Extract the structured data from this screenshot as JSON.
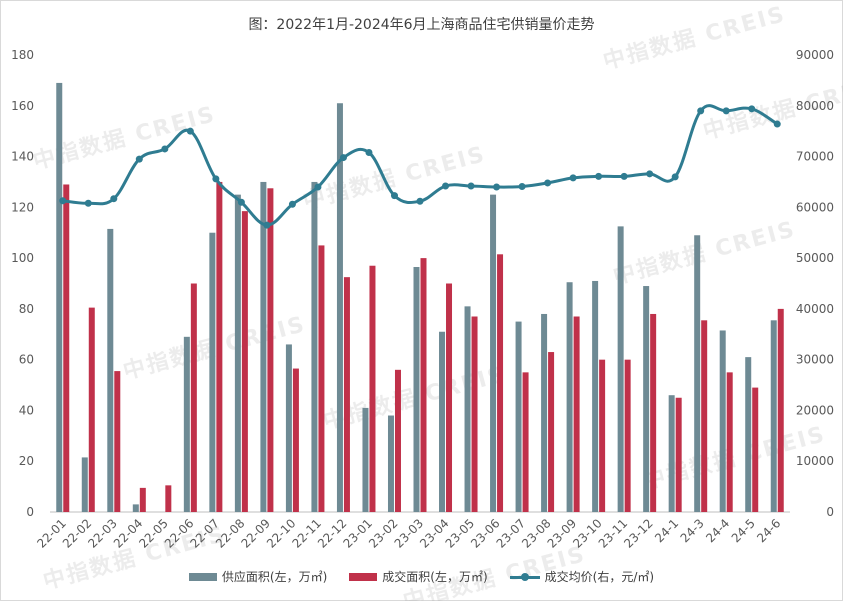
{
  "watermark": "中指数据 CREIS",
  "chart_data": {
    "type": "bar",
    "title": "图：2022年1月-2024年6月上海商品住宅供销量价走势",
    "categories": [
      "22-01",
      "22-02",
      "22-03",
      "22-04",
      "22-05",
      "22-06",
      "22-07",
      "22-08",
      "22-09",
      "22-10",
      "22-11",
      "22-12",
      "23-01",
      "23-02",
      "23-03",
      "23-04",
      "23-05",
      "23-06",
      "23-07",
      "23-08",
      "23-09",
      "23-10",
      "23-11",
      "23-12",
      "24-1",
      "24-3",
      "24-4",
      "24-5",
      "24-6"
    ],
    "ylim_left": [
      0,
      180
    ],
    "ylim_right": [
      0,
      90000
    ],
    "yticks_left": [
      "0",
      "20",
      "40",
      "60",
      "80",
      "100",
      "120",
      "140",
      "160",
      "180"
    ],
    "yticks_right": [
      "0",
      "10000",
      "20000",
      "30000",
      "40000",
      "50000",
      "60000",
      "70000",
      "80000",
      "90000"
    ],
    "legend_position": "bottom",
    "grid": false,
    "series": [
      {
        "name": "供应面积(左，万㎡)",
        "type": "bar",
        "axis": "left",
        "color": "#6e8a94",
        "values": [
          169,
          21.5,
          111.5,
          3,
          0,
          69,
          110,
          125,
          130,
          66,
          130,
          161,
          41,
          38,
          96.5,
          71,
          81,
          125,
          75,
          78,
          90.5,
          91,
          112.5,
          89,
          46,
          109,
          71.5,
          61,
          75.5
        ]
      },
      {
        "name": "成交面积(左，万㎡)",
        "type": "bar",
        "axis": "left",
        "color": "#c0314a",
        "values": [
          129,
          80.5,
          55.5,
          9.5,
          10.5,
          90,
          130,
          118.5,
          127.5,
          56.5,
          105,
          92.5,
          97,
          56,
          100,
          90,
          77,
          101.5,
          55,
          63,
          77,
          60,
          60,
          78,
          45,
          75.5,
          55,
          49,
          80
        ]
      },
      {
        "name": "成交均价(右，元/㎡)",
        "type": "line",
        "axis": "right",
        "color": "#2f7c91",
        "values": [
          61300,
          60800,
          61700,
          69500,
          71500,
          75000,
          65600,
          61000,
          56500,
          60600,
          64000,
          69800,
          70800,
          62300,
          61200,
          64200,
          64200,
          64000,
          64100,
          64800,
          65800,
          66100,
          66100,
          66600,
          66000,
          79000,
          79000,
          79400,
          76400
        ]
      }
    ]
  }
}
